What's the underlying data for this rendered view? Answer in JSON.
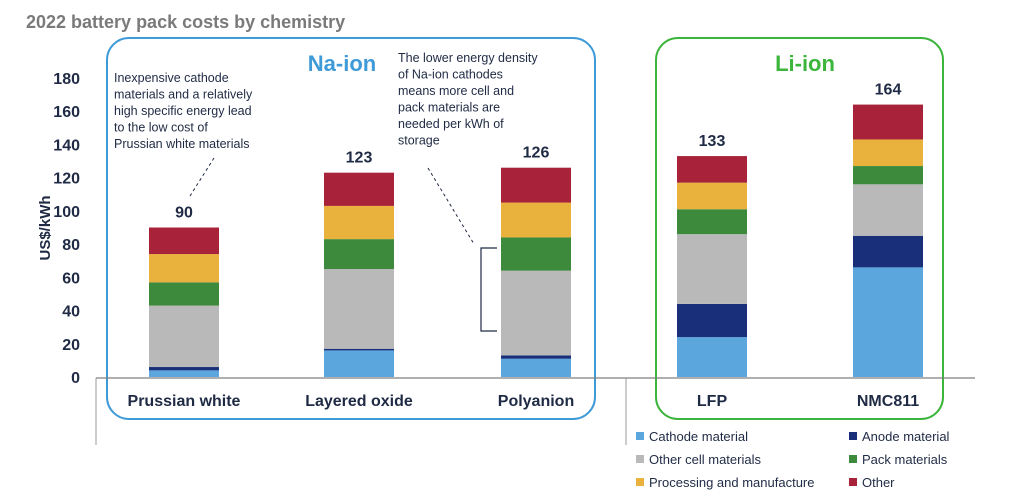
{
  "chart_data": {
    "type": "bar",
    "stacked": true,
    "title": "2022 battery pack costs by chemistry",
    "ylabel": "US$/kWh",
    "xlabel": "",
    "ylim": [
      0,
      180
    ],
    "yticks": [
      0,
      20,
      40,
      60,
      80,
      100,
      120,
      140,
      160,
      180
    ],
    "grid": false,
    "legend_position": "bottom-right",
    "categories": [
      "Prussian white",
      "Layered oxide",
      "Polyanion",
      "LFP",
      "NMC811"
    ],
    "totals": [
      90,
      123,
      126,
      133,
      164
    ],
    "series": [
      {
        "name": "Cathode material",
        "color": "#5aa6dd",
        "values": [
          4,
          16,
          11,
          24,
          66
        ]
      },
      {
        "name": "Anode material",
        "color": "#1a2f7a",
        "values": [
          2,
          1,
          2,
          20,
          19
        ]
      },
      {
        "name": "Other cell materials",
        "color": "#b9b9b9",
        "values": [
          37,
          48,
          51,
          42,
          31
        ]
      },
      {
        "name": "Pack materials",
        "color": "#3d8a3d",
        "values": [
          14,
          18,
          20,
          15,
          11
        ]
      },
      {
        "name": "Processing and manufacture",
        "color": "#e8b23c",
        "values": [
          17,
          20,
          21,
          16,
          16
        ]
      },
      {
        "name": "Other",
        "color": "#a8233a",
        "values": [
          16,
          20,
          21,
          16,
          21
        ]
      }
    ],
    "groups": [
      {
        "label": "Na-ion",
        "color": "#3f9ad8",
        "categories": [
          "Prussian white",
          "Layered oxide",
          "Polyanion"
        ]
      },
      {
        "label": "Li-ion",
        "color": "#3cb53c",
        "categories": [
          "LFP",
          "NMC811"
        ]
      }
    ],
    "annotations": [
      {
        "lines": [
          "Inexpensive cathode",
          "materials and a relatively",
          "high specific energy lead",
          "to the low cost of",
          "Prussian white materials"
        ],
        "target": "Prussian white"
      },
      {
        "lines": [
          "The lower energy density",
          "of Na-ion cathodes",
          "means more cell and",
          "pack materials are",
          "needed per kWh of",
          "storage"
        ],
        "target": "Polyanion"
      }
    ]
  }
}
